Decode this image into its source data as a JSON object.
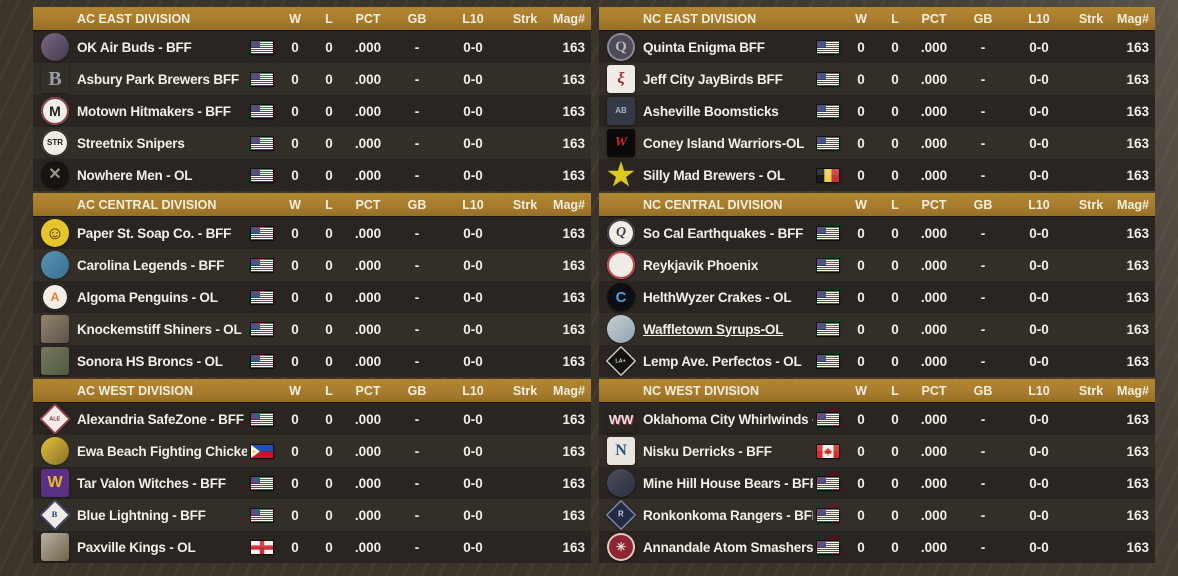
{
  "columns": [
    "W",
    "L",
    "PCT",
    "GB",
    "L10",
    "Strk",
    "Mag#"
  ],
  "colors": {
    "header_bg": "#a87c2e",
    "header_text": "#f4eedd",
    "row_odd": "#2a2520",
    "row_even": "#332e27",
    "row_text": "#f2efe9",
    "page_bg": "#3b342b"
  },
  "divisions": [
    {
      "title": "AC EAST DIVISION",
      "column": "left",
      "teams": [
        {
          "name": "OK Air Buds - BFF",
          "flag": "us",
          "W": "0",
          "L": "0",
          "PCT": ".000",
          "GB": "-",
          "L10": "0-0",
          "Strk": "",
          "Mag": "163",
          "logo": {
            "shape": "photo-circle",
            "bg": "#7a6884",
            "bg2": "#43384e",
            "glyph": "",
            "fg": "#d9c6a8",
            "desc": "player-photo"
          }
        },
        {
          "name": "Asbury Park Brewers BFF",
          "flag": "us",
          "W": "0",
          "L": "0",
          "PCT": ".000",
          "GB": "-",
          "L10": "0-0",
          "Strk": "",
          "Mag": "163",
          "logo": {
            "shape": "plain",
            "bg": "",
            "glyph": "B",
            "fg": "#9aa0a8",
            "size": 20,
            "font": "serif",
            "desc": "gray-B-wheat"
          }
        },
        {
          "name": "Motown Hitmakers - BFF",
          "flag": "us",
          "W": "0",
          "L": "0",
          "PCT": ".000",
          "GB": "-",
          "L10": "0-0",
          "Strk": "",
          "Mag": "163",
          "logo": {
            "shape": "circle",
            "bg": "#f1ede6",
            "ring": "#7d4048",
            "glyph": "M",
            "fg": "#23201c",
            "size": 14
          }
        },
        {
          "name": "Streetnix Snipers",
          "flag": "us",
          "W": "0",
          "L": "0",
          "PCT": ".000",
          "GB": "-",
          "L10": "0-0",
          "Strk": "",
          "Mag": "163",
          "logo": {
            "shape": "circle",
            "bg": "#f1ede6",
            "ring": "#35302a",
            "glyph": "STR",
            "fg": "#23201c",
            "size": 8
          }
        },
        {
          "name": "Nowhere Men - OL",
          "flag": "us",
          "W": "0",
          "L": "0",
          "PCT": ".000",
          "GB": "-",
          "L10": "0-0",
          "Strk": "",
          "Mag": "163",
          "logo": {
            "shape": "circle",
            "bg": "#17140f",
            "glyph": "✕",
            "fg": "#9b948a",
            "size": 16
          }
        }
      ]
    },
    {
      "title": "AC CENTRAL DIVISION",
      "column": "left",
      "teams": [
        {
          "name": "Paper St. Soap Co. - BFF",
          "flag": "us",
          "W": "0",
          "L": "0",
          "PCT": ".000",
          "GB": "-",
          "L10": "0-0",
          "Strk": "",
          "Mag": "163",
          "logo": {
            "shape": "circle",
            "bg": "#e5c42c",
            "glyph": "☺",
            "fg": "#403000",
            "size": 18,
            "desc": "yellow-smiley"
          }
        },
        {
          "name": "Carolina Legends - BFF",
          "flag": "us",
          "W": "0",
          "L": "0",
          "PCT": ".000",
          "GB": "-",
          "L10": "0-0",
          "Strk": "",
          "Mag": "163",
          "logo": {
            "shape": "photo-circle",
            "bg": "#5b93b5",
            "bg2": "#35708f",
            "glyph": "",
            "fg": "",
            "desc": "blue-hooded-character"
          }
        },
        {
          "name": "Algoma Penguins - OL",
          "flag": "us",
          "W": "0",
          "L": "0",
          "PCT": ".000",
          "GB": "-",
          "L10": "0-0",
          "Strk": "",
          "Mag": "163",
          "logo": {
            "shape": "circle",
            "bg": "#f2efe8",
            "ring": "#24211c",
            "glyph": "A",
            "fg": "#e07f2a",
            "size": 12,
            "desc": "penguin"
          }
        },
        {
          "name": "Knockemstiff Shiners - OL",
          "flag": "us",
          "W": "0",
          "L": "0",
          "PCT": ".000",
          "GB": "-",
          "L10": "0-0",
          "Strk": "",
          "Mag": "163",
          "logo": {
            "shape": "photo-square",
            "bg": "#93846c",
            "bg2": "#5b5349",
            "glyph": "",
            "desc": "cartoon-batter"
          }
        },
        {
          "name": "Sonora HS Broncs - OL",
          "flag": "us",
          "W": "0",
          "L": "0",
          "PCT": ".000",
          "GB": "-",
          "L10": "0-0",
          "Strk": "",
          "Mag": "163",
          "logo": {
            "shape": "photo-square",
            "bg": "#77775f",
            "bg2": "#4f5a3f",
            "glyph": "",
            "desc": "player-painting"
          }
        }
      ]
    },
    {
      "title": "AC WEST DIVISION",
      "column": "left",
      "teams": [
        {
          "name": "Alexandria SafeZone - BFF",
          "flag": "us",
          "W": "0",
          "L": "0",
          "PCT": ".000",
          "GB": "-",
          "L10": "0-0",
          "Strk": "",
          "Mag": "163",
          "logo": {
            "shape": "diamond",
            "bg": "#f1ede6",
            "ring": "#a0343f",
            "glyph": "ALE",
            "fg": "#8c2a34",
            "size": 7,
            "desc": "red-plate-ALE"
          }
        },
        {
          "name": "Ewa Beach Fighting Chicken",
          "flag": "ph",
          "W": "0",
          "L": "0",
          "PCT": ".000",
          "GB": "-",
          "L10": "0-0",
          "Strk": "",
          "Mag": "163",
          "logo": {
            "shape": "photo-circle",
            "bg": "#e3c33a",
            "bg2": "#8a6d2a",
            "glyph": "",
            "desc": "fighting-chicken"
          }
        },
        {
          "name": "Tar Valon Witches - BFF",
          "flag": "us",
          "W": "0",
          "L": "0",
          "PCT": ".000",
          "GB": "-",
          "L10": "0-0",
          "Strk": "",
          "Mag": "163",
          "logo": {
            "shape": "square",
            "bg": "#5a2f86",
            "glyph": "W",
            "fg": "#e8b82a",
            "size": 16,
            "desc": "purple-gold-W"
          }
        },
        {
          "name": "Blue Lightning - BFF",
          "flag": "us",
          "W": "0",
          "L": "0",
          "PCT": ".000",
          "GB": "-",
          "L10": "0-0",
          "Strk": "",
          "Mag": "163",
          "logo": {
            "shape": "diamond",
            "bg": "#f1ede6",
            "ring": "#3a3f6e",
            "glyph": "B",
            "fg": "#27418c",
            "size": 11,
            "font": "serif"
          }
        },
        {
          "name": "Paxville Kings - OL",
          "flag": "england",
          "W": "0",
          "L": "0",
          "PCT": ".000",
          "GB": "-",
          "L10": "0-0",
          "Strk": "",
          "Mag": "163",
          "logo": {
            "shape": "photo-square",
            "bg": "#b8b2a8",
            "bg2": "#6e6344",
            "glyph": "",
            "desc": "playing-cards-kings"
          }
        }
      ]
    },
    {
      "title": "NC EAST DIVISION",
      "column": "right",
      "teams": [
        {
          "name": "Quinta Enigma BFF",
          "flag": "us",
          "W": "0",
          "L": "0",
          "PCT": ".000",
          "GB": "-",
          "L10": "0-0",
          "Strk": "",
          "Mag": "163",
          "logo": {
            "shape": "circle",
            "bg": "#4e4a56",
            "ring": "#8d8797",
            "glyph": "Q",
            "fg": "#b9b3c2",
            "size": 15,
            "font": "serif",
            "desc": "ornate-Q"
          }
        },
        {
          "name": "Jeff City JayBirds BFF",
          "flag": "us",
          "W": "0",
          "L": "0",
          "PCT": ".000",
          "GB": "-",
          "L10": "0-0",
          "Strk": "",
          "Mag": "163",
          "logo": {
            "shape": "square",
            "bg": "#efece6",
            "glyph": "ξ",
            "fg": "#9e1f2e",
            "size": 16,
            "font": "script",
            "desc": "red-bird-crest"
          }
        },
        {
          "name": "Asheville Boomsticks",
          "flag": "us",
          "W": "0",
          "L": "0",
          "PCT": ".000",
          "GB": "-",
          "L10": "0-0",
          "Strk": "",
          "Mag": "163",
          "logo": {
            "shape": "square",
            "bg": "#343a45",
            "glyph": "AB",
            "fg": "#9fb6cc",
            "size": 8,
            "desc": "swoosh-wordmark"
          }
        },
        {
          "name": "Coney Island Warriors-OL",
          "flag": "us",
          "W": "0",
          "L": "0",
          "PCT": ".000",
          "GB": "-",
          "L10": "0-0",
          "Strk": "",
          "Mag": "163",
          "logo": {
            "shape": "square",
            "bg": "#0a0a0a",
            "glyph": "W",
            "fg": "#c8232c",
            "size": 14,
            "font": "script",
            "desc": "warriors-script"
          }
        },
        {
          "name": "Silly Mad Brewers - OL",
          "flag": "belgium",
          "W": "0",
          "L": "0",
          "PCT": ".000",
          "GB": "-",
          "L10": "0-0",
          "Strk": "",
          "Mag": "163",
          "logo": {
            "shape": "star",
            "bg": "#ddc81e",
            "glyph": "",
            "fg": "#5a4a00",
            "desc": "yellow-star-face"
          }
        }
      ]
    },
    {
      "title": "NC CENTRAL DIVISION",
      "column": "right",
      "teams": [
        {
          "name": "So Cal Earthquakes - BFF",
          "flag": "us",
          "W": "0",
          "L": "0",
          "PCT": ".000",
          "GB": "-",
          "L10": "0-0",
          "Strk": "",
          "Mag": "163",
          "logo": {
            "shape": "circle",
            "bg": "#f0ede7",
            "ring": "#3c3a44",
            "glyph": "Q",
            "fg": "#44414e",
            "size": 14,
            "font": "script"
          }
        },
        {
          "name": "Reykjavik Phoenix",
          "flag": "us",
          "W": "0",
          "L": "0",
          "PCT": ".000",
          "GB": "-",
          "L10": "0-0",
          "Strk": "",
          "Mag": "163",
          "logo": {
            "shape": "circle",
            "bg": "#f0ede7",
            "ring": "#c24250",
            "glyph": "",
            "fg": "#c24250",
            "desc": "baseball-red-ring"
          }
        },
        {
          "name": "HelthWyzer Crakes - OL",
          "flag": "us",
          "W": "0",
          "L": "0",
          "PCT": ".000",
          "GB": "-",
          "L10": "0-0",
          "Strk": "",
          "Mag": "163",
          "logo": {
            "shape": "circle",
            "bg": "#0d0e12",
            "glyph": "C",
            "fg": "#4da3df",
            "size": 15
          }
        },
        {
          "name": "Waffletown Syrups-OL",
          "flag": "us",
          "underline": true,
          "W": "0",
          "L": "0",
          "PCT": ".000",
          "GB": "-",
          "L10": "0-0",
          "Strk": "",
          "Mag": "163",
          "logo": {
            "shape": "photo-circle",
            "bg": "#c7d0d6",
            "bg2": "#8fa2ae",
            "glyph": "",
            "desc": "waffle-character"
          }
        },
        {
          "name": "Lemp Ave. Perfectos - OL",
          "flag": "us",
          "W": "0",
          "L": "0",
          "PCT": ".000",
          "GB": "-",
          "L10": "0-0",
          "Strk": "",
          "Mag": "163",
          "logo": {
            "shape": "diamond",
            "bg": "#14120f",
            "ring": "#cfcabf",
            "glyph": "LA+",
            "fg": "#d8d3c8",
            "size": 7
          }
        }
      ]
    },
    {
      "title": "NC WEST DIVISION",
      "column": "right",
      "teams": [
        {
          "name": "Oklahoma City Whirlwinds -",
          "flag": "us",
          "W": "0",
          "L": "0",
          "PCT": ".000",
          "GB": "-",
          "L10": "0-0",
          "Strk": "",
          "Mag": "163",
          "logo": {
            "shape": "plain",
            "glyph": "WW",
            "fg": "#dfe3e8",
            "size": 13,
            "shadow": "#a03030",
            "desc": "double-W"
          }
        },
        {
          "name": "Nisku Derricks - BFF",
          "flag": "canada",
          "W": "0",
          "L": "0",
          "PCT": ".000",
          "GB": "-",
          "L10": "0-0",
          "Strk": "",
          "Mag": "163",
          "logo": {
            "shape": "square",
            "bg": "#e9e6df",
            "glyph": "N",
            "fg": "#2c4f7c",
            "size": 16,
            "font": "serif"
          }
        },
        {
          "name": "Mine Hill House Bears - BFF",
          "flag": "us",
          "W": "0",
          "L": "0",
          "PCT": ".000",
          "GB": "-",
          "L10": "0-0",
          "Strk": "",
          "Mag": "163",
          "logo": {
            "shape": "photo-circle",
            "bg": "#4a4f60",
            "bg2": "#2c2f3a",
            "glyph": "",
            "desc": "hooded-bear"
          }
        },
        {
          "name": "Ronkonkoma Rangers - BFF",
          "flag": "us",
          "W": "0",
          "L": "0",
          "PCT": ".000",
          "GB": "-",
          "L10": "0-0",
          "Strk": "",
          "Mag": "163",
          "logo": {
            "shape": "diamond",
            "bg": "#232a44",
            "ring": "#7d86a3",
            "glyph": "R",
            "fg": "#ccd2e2",
            "size": 10
          }
        },
        {
          "name": "Annandale Atom Smashers-",
          "flag": "us",
          "W": "0",
          "L": "0",
          "PCT": ".000",
          "GB": "-",
          "L10": "0-0",
          "Strk": "",
          "Mag": "163",
          "logo": {
            "shape": "circle",
            "bg": "#8e2533",
            "ring": "#d9cdbf",
            "glyph": "✳",
            "fg": "#e9ded1",
            "size": 12,
            "desc": "atom-symbol"
          }
        }
      ]
    }
  ]
}
